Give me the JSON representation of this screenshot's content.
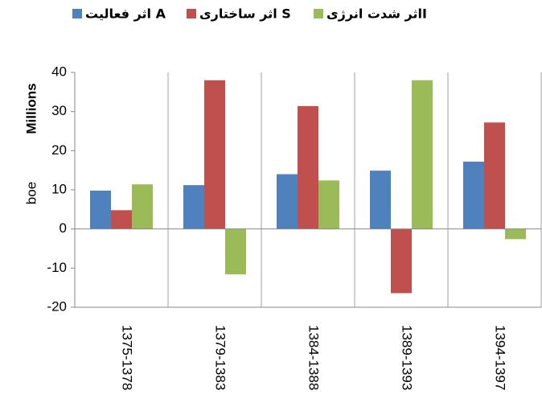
{
  "chart_data": {
    "type": "bar",
    "y_label_top": "Millions",
    "y_label": "boe",
    "categories": [
      "1375-1378",
      "1379-1383",
      "1384-1388",
      "1389-1393",
      "1394-1397"
    ],
    "series": [
      {
        "name": "اثر فعالیت A",
        "color": "#4f81bd",
        "values": [
          9.8,
          11.2,
          14,
          14.9,
          17.2
        ]
      },
      {
        "name": "اثر ساختاری S",
        "color": "#c0504d",
        "values": [
          4.8,
          38,
          31.4,
          -16.4,
          27.2
        ]
      },
      {
        "name": "اثر شدت انرژیI",
        "color": "#9bbb59",
        "values": [
          11.4,
          -11.6,
          12.4,
          38,
          -2.6
        ]
      }
    ],
    "ylim": [
      -20,
      40
    ],
    "yticks": [
      -20,
      -10,
      0,
      10,
      20,
      30,
      40
    ],
    "vertical_grid": true,
    "legend": "top"
  }
}
